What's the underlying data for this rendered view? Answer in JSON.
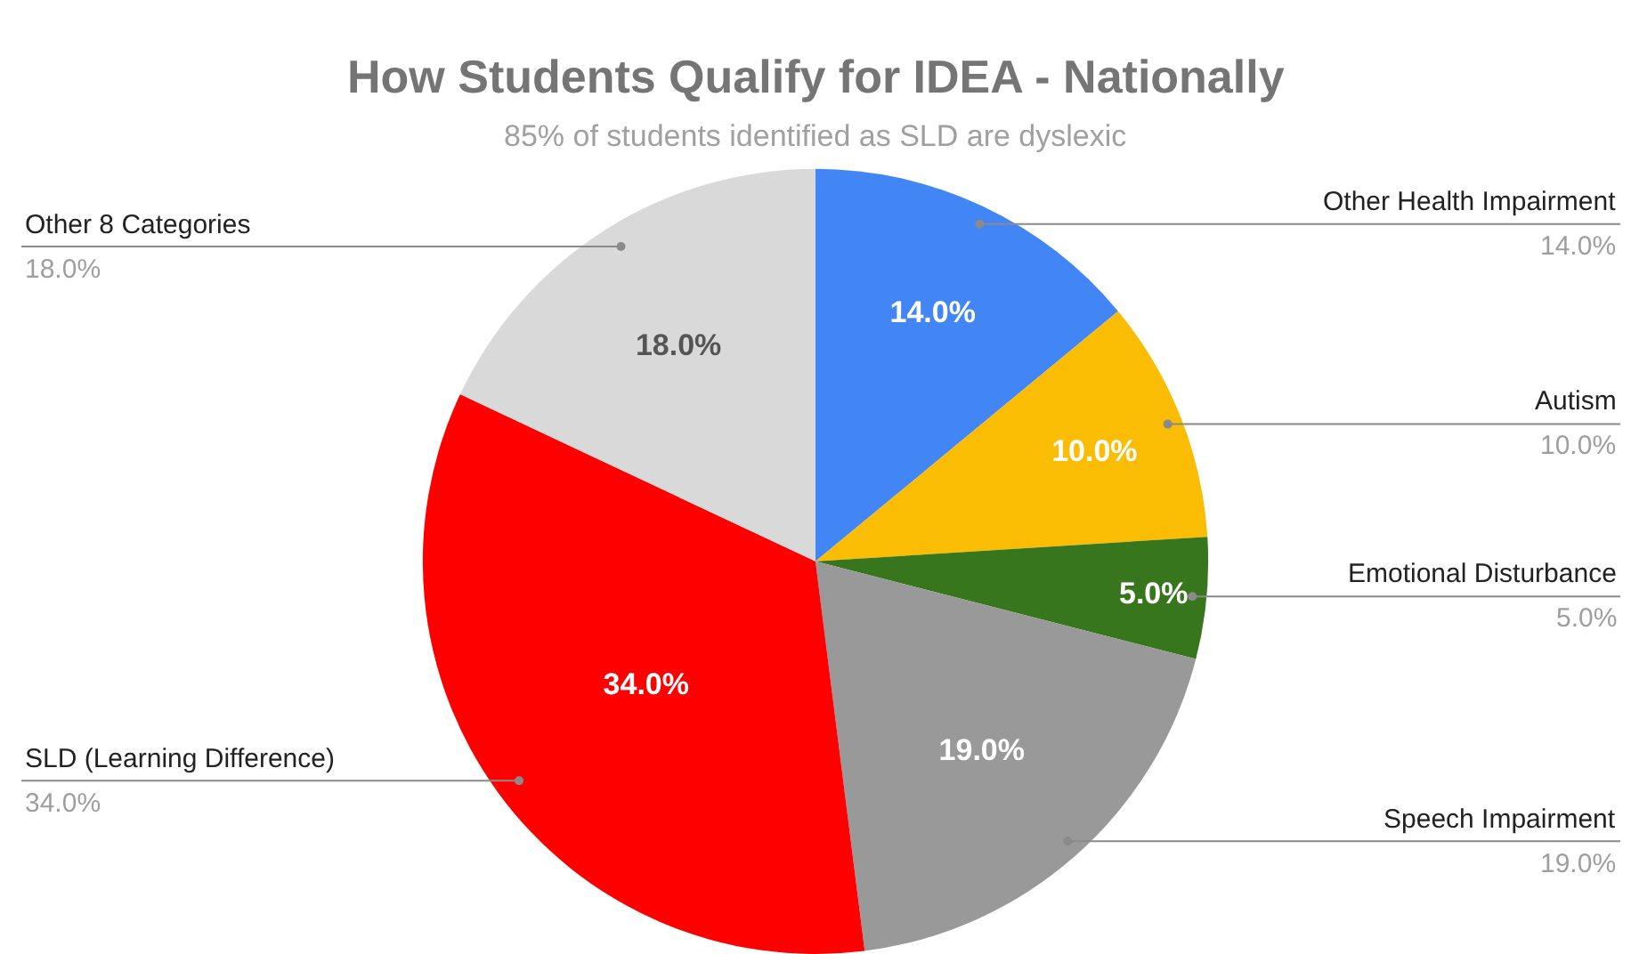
{
  "chart_data": {
    "type": "pie",
    "title": "How Students Qualify for IDEA - Nationally",
    "subtitle": "85% of students identified as SLD are dyslexic",
    "categories": [
      "Other Health Impairment",
      "Autism",
      "Emotional Disturbance",
      "Speech Impairment",
      "SLD (Learning Difference)",
      "Other 8 Categories"
    ],
    "values": [
      14.0,
      10.0,
      5.0,
      19.0,
      34.0,
      18.0
    ],
    "colors": [
      "#4285f4",
      "#fbbc04",
      "#38761d",
      "#999999",
      "#ff0000",
      "#d9d9d9"
    ],
    "value_labels": [
      "14.0%",
      "10.0%",
      "5.0%",
      "19.0%",
      "34.0%",
      "18.0%"
    ],
    "legend": false
  }
}
